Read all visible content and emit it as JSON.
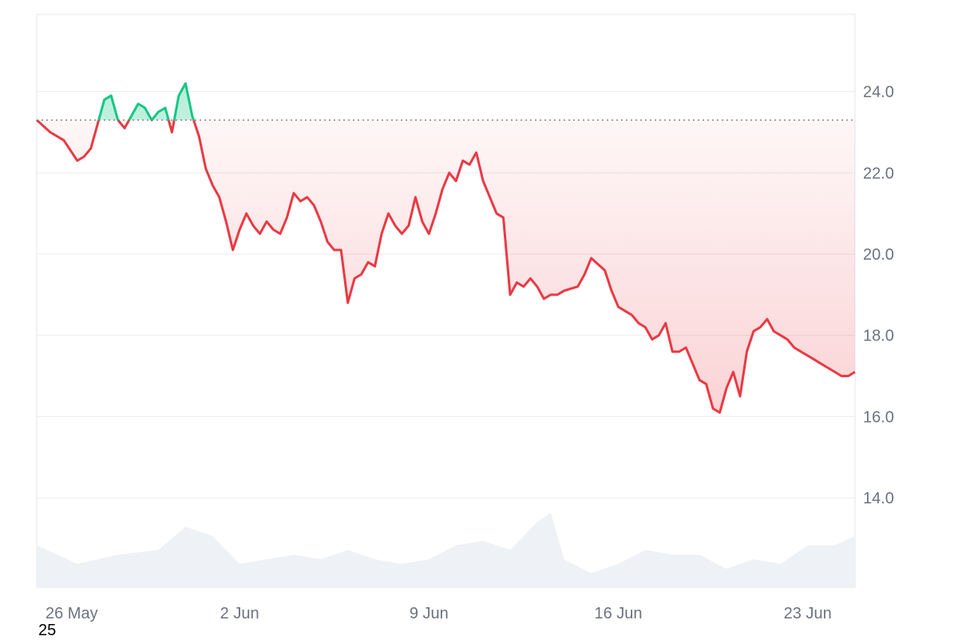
{
  "chart_data": {
    "type": "line",
    "title": "",
    "xlabel": "",
    "ylabel": "",
    "baseline": 23.3,
    "ylim": [
      11.8,
      25.9
    ],
    "xlim": [
      "2025-05-25T12:00",
      "2025-06-24T18:00"
    ],
    "y_ticks": [
      "24.0",
      "22.0",
      "20.0",
      "18.0",
      "16.0",
      "14.0"
    ],
    "x_ticks": [
      {
        "label": "26 May",
        "date": "2025-05-26"
      },
      {
        "label": "2 Jun",
        "date": "2025-06-02"
      },
      {
        "label": "9 Jun",
        "date": "2025-06-09"
      },
      {
        "label": "16 Jun",
        "date": "2025-06-16"
      },
      {
        "label": "23 Jun",
        "date": "2025-06-23"
      }
    ],
    "grid": true,
    "colors": {
      "up": "#16c784",
      "down": "#ea3943",
      "volume": "#eef1f5",
      "grid": "#e9ecef"
    },
    "price": {
      "x": [
        "2025-05-25T12:00",
        "2025-05-26T00:00",
        "2025-05-26T12:00",
        "2025-05-27T00:00",
        "2025-05-27T06:00",
        "2025-05-27T12:00",
        "2025-05-28T00:00",
        "2025-05-28T06:00",
        "2025-05-28T12:00",
        "2025-05-28T18:00",
        "2025-05-29T06:00",
        "2025-05-29T12:00",
        "2025-05-29T18:00",
        "2025-05-30T00:00",
        "2025-05-30T06:00",
        "2025-05-30T12:00",
        "2025-05-30T18:00",
        "2025-05-31T00:00",
        "2025-05-31T06:00",
        "2025-05-31T12:00",
        "2025-05-31T18:00",
        "2025-06-01T00:00",
        "2025-06-01T06:00",
        "2025-06-01T12:00",
        "2025-06-01T18:00",
        "2025-06-02T00:00",
        "2025-06-02T06:00",
        "2025-06-02T12:00",
        "2025-06-02T18:00",
        "2025-06-03T00:00",
        "2025-06-03T06:00",
        "2025-06-03T12:00",
        "2025-06-03T18:00",
        "2025-06-04T00:00",
        "2025-06-04T06:00",
        "2025-06-04T12:00",
        "2025-06-04T18:00",
        "2025-06-05T00:00",
        "2025-06-05T06:00",
        "2025-06-05T12:00",
        "2025-06-05T18:00",
        "2025-06-06T00:00",
        "2025-06-06T06:00",
        "2025-06-06T12:00",
        "2025-06-06T18:00",
        "2025-06-07T00:00",
        "2025-06-07T06:00",
        "2025-06-07T12:00",
        "2025-06-07T18:00",
        "2025-06-08T00:00",
        "2025-06-08T06:00",
        "2025-06-08T12:00",
        "2025-06-08T18:00",
        "2025-06-09T00:00",
        "2025-06-09T06:00",
        "2025-06-09T12:00",
        "2025-06-09T18:00",
        "2025-06-10T00:00",
        "2025-06-10T06:00",
        "2025-06-10T12:00",
        "2025-06-10T18:00",
        "2025-06-11T00:00",
        "2025-06-11T06:00",
        "2025-06-11T12:00",
        "2025-06-11T18:00",
        "2025-06-12T00:00",
        "2025-06-12T06:00",
        "2025-06-12T12:00",
        "2025-06-12T18:00",
        "2025-06-13T00:00",
        "2025-06-13T06:00",
        "2025-06-13T12:00",
        "2025-06-13T18:00",
        "2025-06-14T00:00",
        "2025-06-14T12:00",
        "2025-06-14T18:00",
        "2025-06-15T00:00",
        "2025-06-15T12:00",
        "2025-06-15T18:00",
        "2025-06-16T00:00",
        "2025-06-16T06:00",
        "2025-06-16T12:00",
        "2025-06-16T18:00",
        "2025-06-17T00:00",
        "2025-06-17T06:00",
        "2025-06-17T12:00",
        "2025-06-17T18:00",
        "2025-06-18T00:00",
        "2025-06-18T06:00",
        "2025-06-18T12:00",
        "2025-06-18T18:00",
        "2025-06-19T00:00",
        "2025-06-19T06:00",
        "2025-06-19T12:00",
        "2025-06-19T18:00",
        "2025-06-20T00:00",
        "2025-06-20T06:00",
        "2025-06-20T12:00",
        "2025-06-20T18:00",
        "2025-06-21T00:00",
        "2025-06-21T06:00",
        "2025-06-21T12:00",
        "2025-06-21T18:00",
        "2025-06-22T00:00",
        "2025-06-22T06:00",
        "2025-06-22T12:00",
        "2025-06-22T18:00",
        "2025-06-23T00:00",
        "2025-06-23T06:00",
        "2025-06-23T12:00",
        "2025-06-23T18:00",
        "2025-06-24T00:00",
        "2025-06-24T06:00",
        "2025-06-24T12:00",
        "2025-06-24T18:00"
      ],
      "y": [
        23.3,
        23.0,
        22.8,
        22.3,
        22.4,
        22.6,
        23.8,
        23.9,
        23.3,
        23.1,
        23.7,
        23.6,
        23.3,
        23.5,
        23.6,
        23.0,
        23.9,
        24.2,
        23.4,
        22.9,
        22.1,
        21.7,
        21.4,
        20.8,
        20.1,
        20.6,
        21.0,
        20.7,
        20.5,
        20.8,
        20.6,
        20.5,
        20.9,
        21.5,
        21.3,
        21.4,
        21.2,
        20.8,
        20.3,
        20.1,
        20.1,
        18.8,
        19.4,
        19.5,
        19.8,
        19.7,
        20.5,
        21.0,
        20.7,
        20.5,
        20.7,
        21.4,
        20.8,
        20.5,
        21.0,
        21.6,
        22.0,
        21.8,
        22.3,
        22.2,
        22.5,
        21.8,
        21.4,
        21.0,
        20.9,
        19.0,
        19.3,
        19.2,
        19.4,
        19.2,
        18.9,
        19.0,
        19.0,
        19.1,
        19.2,
        19.5,
        19.9,
        19.6,
        19.1,
        18.7,
        18.6,
        18.5,
        18.3,
        18.2,
        17.9,
        18.0,
        18.3,
        17.6,
        17.6,
        17.7,
        17.3,
        16.9,
        16.8,
        16.2,
        16.1,
        16.7,
        17.1,
        16.5,
        17.6,
        18.1,
        18.2,
        18.4,
        18.1,
        18.0,
        17.9,
        17.7,
        17.6,
        17.5,
        17.4,
        17.3,
        17.2,
        17.1,
        17.0,
        17.0,
        17.1
      ],
      "note": "price series"
    },
    "volume": {
      "x": [
        "2025-05-25T12:00",
        "2025-05-27T00:00",
        "2025-05-28T12:00",
        "2025-05-30T00:00",
        "2025-05-31T00:00",
        "2025-06-01T00:00",
        "2025-06-02T00:00",
        "2025-06-03T00:00",
        "2025-06-04T00:00",
        "2025-06-05T00:00",
        "2025-06-06T00:00",
        "2025-06-07T00:00",
        "2025-06-08T00:00",
        "2025-06-09T00:00",
        "2025-06-10T00:00",
        "2025-06-11T00:00",
        "2025-06-12T00:00",
        "2025-06-13T00:00",
        "2025-06-13T12:00",
        "2025-06-14T00:00",
        "2025-06-15T00:00",
        "2025-06-16T00:00",
        "2025-06-17T00:00",
        "2025-06-18T00:00",
        "2025-06-19T00:00",
        "2025-06-20T00:00",
        "2025-06-21T00:00",
        "2025-06-22T00:00",
        "2025-06-23T00:00",
        "2025-06-24T00:00",
        "2025-06-24T18:00"
      ],
      "values": [
        0.9,
        0.5,
        0.7,
        0.8,
        1.3,
        1.1,
        0.5,
        0.6,
        0.7,
        0.6,
        0.8,
        0.6,
        0.5,
        0.6,
        0.9,
        1.0,
        0.8,
        1.4,
        1.6,
        0.6,
        0.3,
        0.5,
        0.8,
        0.7,
        0.7,
        0.4,
        0.6,
        0.5,
        0.9,
        0.9,
        1.1
      ]
    }
  },
  "footer": {
    "text": "25"
  }
}
